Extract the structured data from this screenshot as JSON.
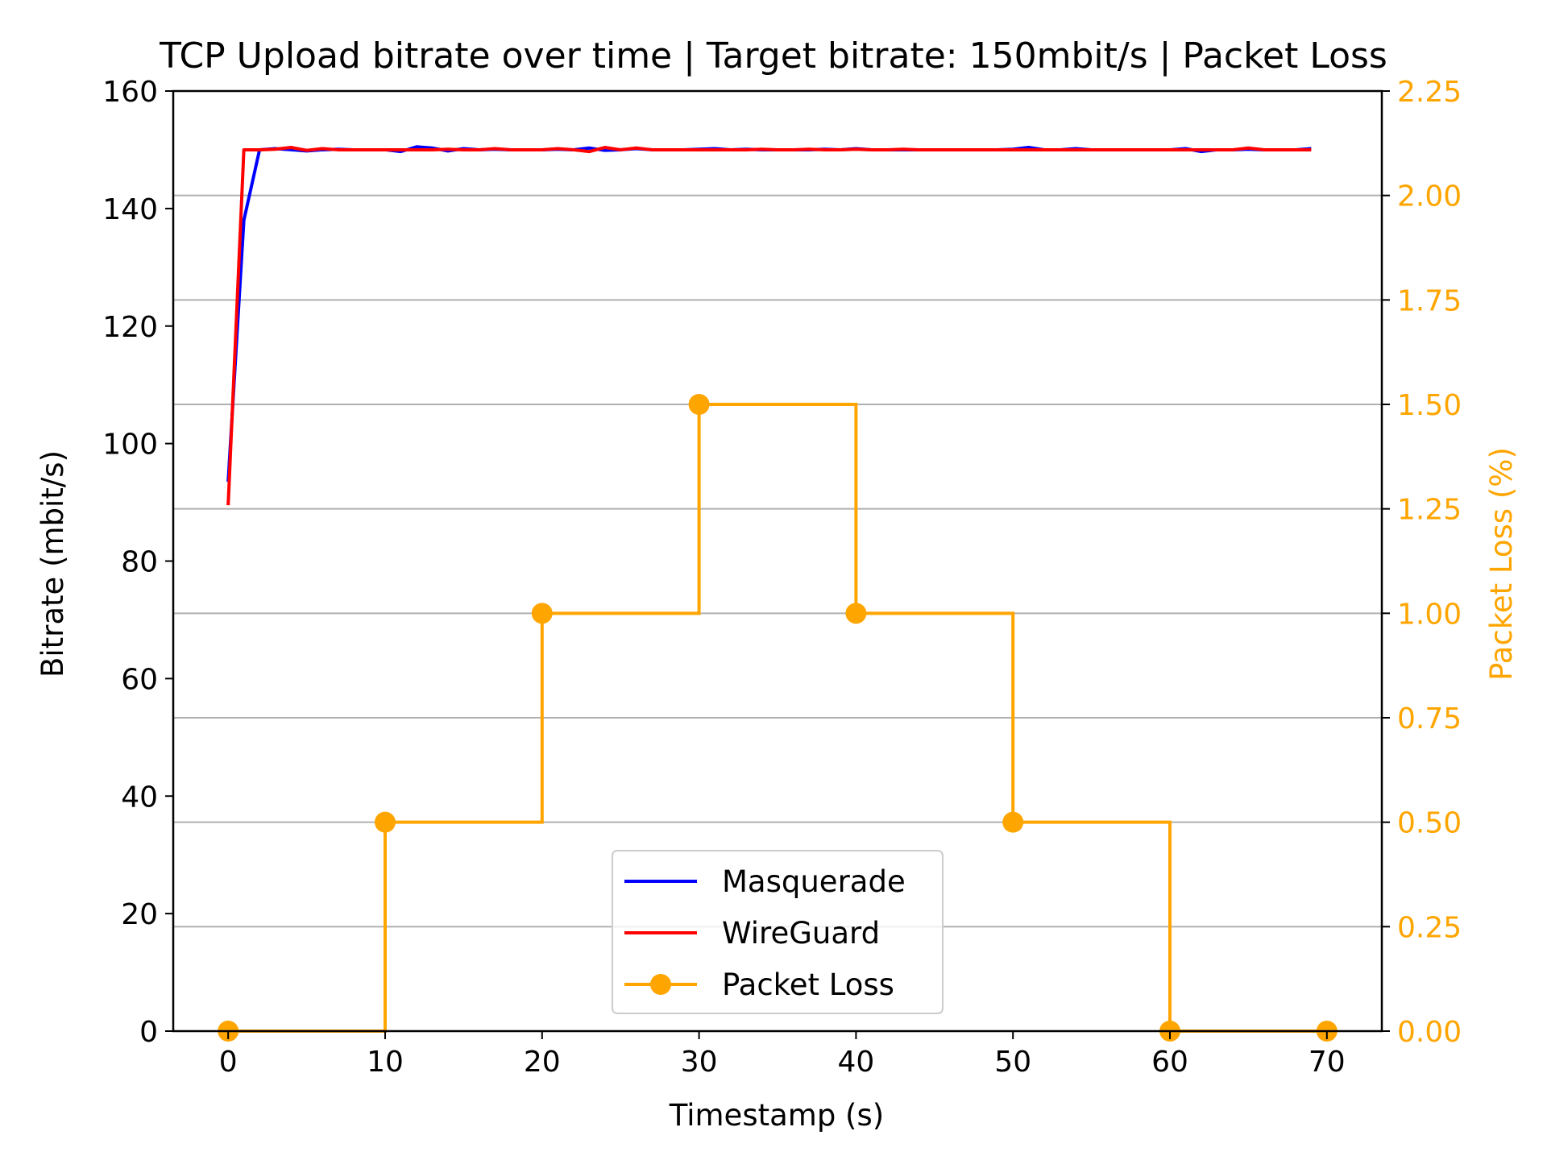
{
  "chart_data": {
    "type": "line",
    "title": "TCP Upload bitrate over time | Target bitrate: 150mbit/s | Packet Loss",
    "xlabel": "Timestamp (s)",
    "ylabel": "Bitrate (mbit/s)",
    "y2label": "Packet Loss (%)",
    "xlim": [
      -3.5,
      73.5
    ],
    "ylim": [
      0,
      160
    ],
    "y2lim": [
      0,
      2.25
    ],
    "x_ticks": [
      "0",
      "10",
      "20",
      "30",
      "40",
      "50",
      "60",
      "70"
    ],
    "y_ticks": [
      "0",
      "20",
      "40",
      "60",
      "80",
      "100",
      "120",
      "140",
      "160"
    ],
    "y2_ticks": [
      "0.00",
      "0.25",
      "0.50",
      "0.75",
      "1.00",
      "1.25",
      "1.50",
      "1.75",
      "2.00",
      "2.25"
    ],
    "grid": "horizontal lines at right-axis ticks",
    "legend_position": "lower-center",
    "series": [
      {
        "name": "Masquerade",
        "axis": "left",
        "color": "#0000ff",
        "x": [
          0,
          1,
          2,
          3,
          4,
          5,
          6,
          7,
          8,
          9,
          10,
          11,
          12,
          13,
          14,
          15,
          16,
          17,
          18,
          19,
          20,
          21,
          22,
          23,
          24,
          25,
          26,
          27,
          28,
          29,
          30,
          31,
          32,
          33,
          34,
          35,
          36,
          37,
          38,
          39,
          40,
          41,
          42,
          43,
          44,
          45,
          46,
          47,
          48,
          49,
          50,
          51,
          52,
          53,
          54,
          55,
          56,
          57,
          58,
          59,
          60,
          61,
          62,
          63,
          64,
          65,
          66,
          67,
          68,
          69
        ],
        "values": [
          93.5,
          138,
          150,
          150.2,
          150,
          149.8,
          150,
          150.1,
          150,
          150,
          150,
          149.7,
          150.5,
          150.3,
          149.8,
          150.2,
          150,
          150.1,
          150,
          150,
          150,
          150.1,
          150,
          150.3,
          149.9,
          150,
          150.2,
          150,
          150,
          150,
          150.1,
          150.2,
          150,
          150.1,
          150,
          150,
          150,
          150,
          150.1,
          150,
          150.2,
          150,
          150,
          150,
          150,
          150,
          150,
          150,
          150,
          150,
          150.1,
          150.4,
          150,
          150,
          150.2,
          150,
          150,
          150,
          150,
          150,
          150,
          150.2,
          149.7,
          150,
          150,
          150.1,
          150,
          150,
          150,
          150.2
        ]
      },
      {
        "name": "WireGuard",
        "axis": "left",
        "color": "#ff0000",
        "x": [
          0,
          1,
          2,
          3,
          4,
          5,
          6,
          7,
          8,
          9,
          10,
          11,
          12,
          13,
          14,
          15,
          16,
          17,
          18,
          19,
          20,
          21,
          22,
          23,
          24,
          25,
          26,
          27,
          28,
          29,
          30,
          31,
          32,
          33,
          34,
          35,
          36,
          37,
          38,
          39,
          40,
          41,
          42,
          43,
          44,
          45,
          46,
          47,
          48,
          49,
          50,
          51,
          52,
          53,
          54,
          55,
          56,
          57,
          58,
          59,
          60,
          61,
          62,
          63,
          64,
          65,
          66,
          67,
          68,
          69
        ],
        "values": [
          89.5,
          150,
          150,
          150.1,
          150.4,
          149.9,
          150.2,
          150,
          150,
          150,
          150,
          150,
          150,
          150,
          150.1,
          150,
          150,
          150.2,
          150,
          150,
          150,
          150.2,
          150,
          149.7,
          150.4,
          150,
          150.3,
          150,
          150,
          150,
          150,
          150,
          150,
          150,
          150.1,
          150,
          150,
          150.1,
          150,
          150,
          150.1,
          150,
          150,
          150.1,
          150,
          150,
          150,
          150,
          150,
          150,
          150,
          150,
          150,
          150,
          150,
          150,
          150,
          150,
          150,
          150,
          150,
          150,
          150,
          150,
          150,
          150.3,
          150,
          150,
          150,
          150
        ]
      },
      {
        "name": "Packet Loss",
        "axis": "right",
        "color": "#ffa500",
        "step": "post",
        "x": [
          0,
          10,
          20,
          30,
          40,
          50,
          60,
          70
        ],
        "values": [
          0.0,
          0.5,
          1.0,
          1.5,
          1.0,
          0.5,
          0.0,
          0.0
        ]
      }
    ]
  }
}
